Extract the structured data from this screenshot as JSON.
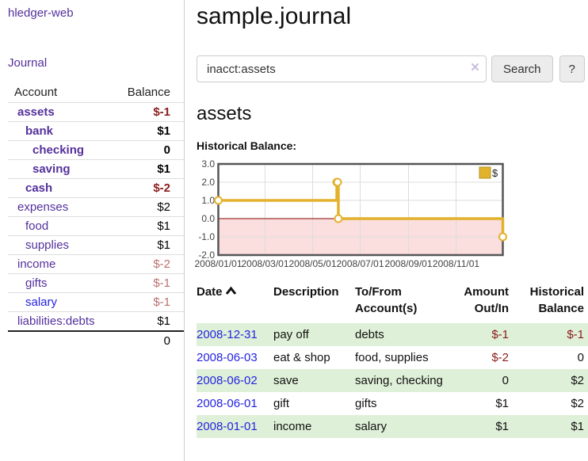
{
  "app": {
    "title": "hledger-web"
  },
  "colors": {
    "link_purple": "#54309c",
    "link_blue": "#2323e0",
    "negative_strong": "#8b1a1a",
    "negative_dim": "#bd6e6e",
    "row_green": "#dff0d8",
    "chart_gold": "#e2b22c",
    "chart_pink": "#fbdede",
    "zero_line": "#8b0000"
  },
  "sidebar": {
    "nav_journal": "Journal",
    "headers": {
      "account": "Account",
      "balance": "Balance"
    },
    "rows": [
      {
        "account": "assets",
        "balance": "$-1",
        "depth": 1,
        "emphasized": true,
        "negative": "strong"
      },
      {
        "account": "bank",
        "balance": "$1",
        "depth": 2,
        "emphasized": true,
        "negative": "none"
      },
      {
        "account": "checking",
        "balance": "0",
        "depth": 3,
        "emphasized": true,
        "negative": "none"
      },
      {
        "account": "saving",
        "balance": "$1",
        "depth": 3,
        "emphasized": true,
        "negative": "none"
      },
      {
        "account": "cash",
        "balance": "$-2",
        "depth": 2,
        "emphasized": true,
        "negative": "strong"
      },
      {
        "account": "expenses",
        "balance": "$2",
        "depth": 1,
        "emphasized": false,
        "negative": "none"
      },
      {
        "account": "food",
        "balance": "$1",
        "depth": 2,
        "emphasized": false,
        "negative": "none"
      },
      {
        "account": "supplies",
        "balance": "$1",
        "depth": 2,
        "emphasized": false,
        "negative": "none"
      },
      {
        "account": "income",
        "balance": "$-2",
        "depth": 1,
        "emphasized": false,
        "negative": "dim"
      },
      {
        "account": "gifts",
        "balance": "$-1",
        "depth": 2,
        "emphasized": false,
        "negative": "dim"
      },
      {
        "account": "salary",
        "balance": "$-1",
        "depth": 2,
        "emphasized": false,
        "negative": "dim"
      },
      {
        "account": "liabilities:debts",
        "balance": "$1",
        "depth": 1,
        "emphasized": false,
        "negative": "none"
      }
    ],
    "total": "0"
  },
  "main": {
    "title": "sample.journal",
    "search": {
      "value": "inacct:assets",
      "clear_icon": "×",
      "button_label": "Search",
      "help_label": "?"
    },
    "account_heading": "assets",
    "chart_label": "Historical Balance:"
  },
  "chart_data": {
    "type": "line",
    "style": "step",
    "title": "Historical Balance",
    "x_start": "2008-01-01",
    "x_span_days": 365,
    "ylim": [
      -2,
      3
    ],
    "y_ticks": [
      3.0,
      2.0,
      1.0,
      0.0,
      -1.0,
      -2.0
    ],
    "x_ticks": [
      "2008/01/01",
      "2008/03/01",
      "2008/05/01",
      "2008/07/01",
      "2008/09/01",
      "2008/11/01"
    ],
    "grid": true,
    "legend": {
      "label": "$",
      "position": "top-right"
    },
    "series": [
      {
        "name": "$",
        "color": "#e2b22c",
        "points": [
          [
            "2008-01-01",
            1
          ],
          [
            "2008-06-01",
            2
          ],
          [
            "2008-06-02",
            2
          ],
          [
            "2008-06-03",
            0
          ],
          [
            "2008-12-31",
            -1
          ]
        ]
      }
    ],
    "negative_region_color": "#fbdede",
    "zero_line_color": "#8b0000"
  },
  "register": {
    "sort": {
      "column": "Date",
      "direction": "ascending"
    },
    "headers": [
      "Date",
      "Description",
      "To/From Account(s)",
      "Amount Out/In",
      "Historical Balance"
    ],
    "rows": [
      {
        "date": "2008-12-31",
        "description": "pay off",
        "accounts": "debts",
        "amount": "$-1",
        "balance": "$-1"
      },
      {
        "date": "2008-06-03",
        "description": "eat & shop",
        "accounts": "food, supplies",
        "amount": "$-2",
        "balance": "0"
      },
      {
        "date": "2008-06-02",
        "description": "save",
        "accounts": "saving, checking",
        "amount": "0",
        "balance": "$2"
      },
      {
        "date": "2008-06-01",
        "description": "gift",
        "accounts": "gifts",
        "amount": "$1",
        "balance": "$2"
      },
      {
        "date": "2008-01-01",
        "description": "income",
        "accounts": "salary",
        "amount": "$1",
        "balance": "$1"
      }
    ]
  }
}
